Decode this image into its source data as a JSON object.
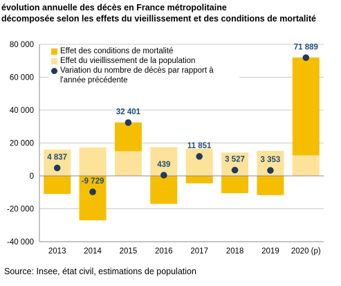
{
  "title_line1": "évolution annuelle des décès en France métropolitaine",
  "title_line2": "décomposée selon les effets du vieillissement et des conditions de mortalité",
  "source": "Source: Insee, état civil, estimations de population",
  "colors": {
    "mortality": "#f5be00",
    "aging": "#fde29a",
    "variation": "#1f3b5c",
    "label": "#1f4e79",
    "grid": "#c8c8c8"
  },
  "chart_data": {
    "type": "bar",
    "stacked": true,
    "categories": [
      "2013",
      "2014",
      "2015",
      "2016",
      "2017",
      "2018",
      "2019",
      "2020 (p)"
    ],
    "ylim": [
      -40000,
      80000
    ],
    "yticks": [
      -40000,
      -20000,
      0,
      20000,
      40000,
      60000,
      80000
    ],
    "ytick_labels": [
      "-40 000",
      "-20 000",
      "0",
      "20 000",
      "40 000",
      "60 000",
      "80 000"
    ],
    "grid": true,
    "legend_position": "top-left",
    "series": [
      {
        "name": "Effet des conditions de mortalité",
        "type": "bar",
        "values": [
          -11000,
          -27000,
          17500,
          -17000,
          -4500,
          -10500,
          -11700,
          59500
        ]
      },
      {
        "name": "Effet du vieillissement de la population",
        "type": "bar",
        "values": [
          16000,
          17300,
          15000,
          17500,
          16500,
          14200,
          15200,
          12500
        ]
      },
      {
        "name": "Variation du nombre de décès par rapport à l'année précédente",
        "type": "scatter",
        "values": [
          4837,
          -9729,
          32401,
          439,
          11851,
          3527,
          3353,
          71889
        ],
        "labels": [
          "4 837",
          "-9 729",
          "32 401",
          "439",
          "11 851",
          "3 527",
          "3 353",
          "71 889"
        ]
      }
    ]
  }
}
